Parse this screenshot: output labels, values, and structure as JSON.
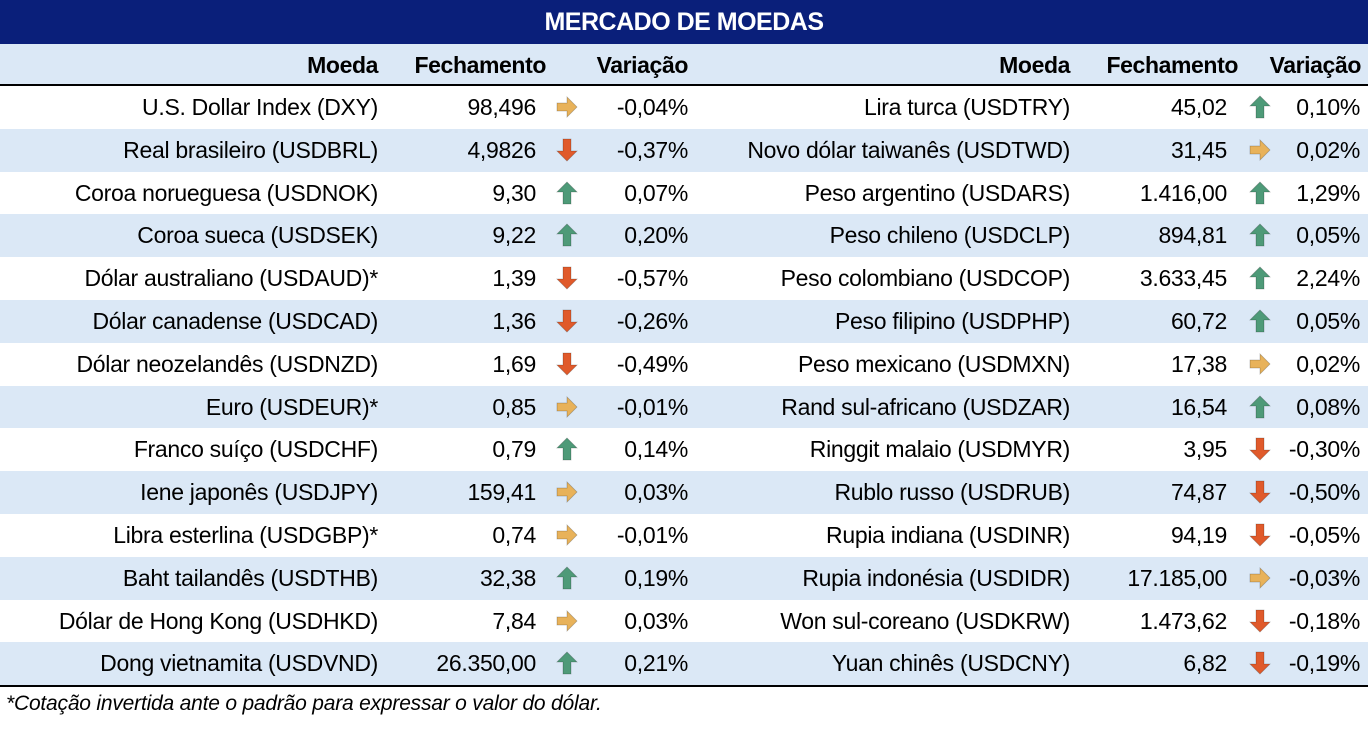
{
  "title": "MERCADO DE MOEDAS",
  "headers": {
    "moeda": "Moeda",
    "fechamento": "Fechamento",
    "variacao": "Variação"
  },
  "colors": {
    "title_bg": "#0a1f7a",
    "band": "#dbe8f6",
    "up": "#4e9a78",
    "down": "#e05a2b",
    "flat": "#e8b25a"
  },
  "left": [
    {
      "name": "U.S. Dollar Index (DXY)",
      "close": "98,496",
      "trend": "flat",
      "change": "-0,04%"
    },
    {
      "name": "Real brasileiro (USDBRL)",
      "close": "4,9826",
      "trend": "down",
      "change": "-0,37%"
    },
    {
      "name": "Coroa norueguesa (USDNOK)",
      "close": "9,30",
      "trend": "up",
      "change": "0,07%"
    },
    {
      "name": "Coroa sueca (USDSEK)",
      "close": "9,22",
      "trend": "up",
      "change": "0,20%"
    },
    {
      "name": "Dólar australiano (USDAUD)*",
      "close": "1,39",
      "trend": "down",
      "change": "-0,57%"
    },
    {
      "name": "Dólar canadense (USDCAD)",
      "close": "1,36",
      "trend": "down",
      "change": "-0,26%"
    },
    {
      "name": "Dólar neozelandês (USDNZD)",
      "close": "1,69",
      "trend": "down",
      "change": "-0,49%"
    },
    {
      "name": "Euro (USDEUR)*",
      "close": "0,85",
      "trend": "flat",
      "change": "-0,01%"
    },
    {
      "name": "Franco suíço (USDCHF)",
      "close": "0,79",
      "trend": "up",
      "change": "0,14%"
    },
    {
      "name": "Iene japonês (USDJPY)",
      "close": "159,41",
      "trend": "flat",
      "change": "0,03%"
    },
    {
      "name": "Libra esterlina (USDGBP)*",
      "close": "0,74",
      "trend": "flat",
      "change": "-0,01%"
    },
    {
      "name": "Baht tailandês (USDTHB)",
      "close": "32,38",
      "trend": "up",
      "change": "0,19%"
    },
    {
      "name": "Dólar de Hong Kong (USDHKD)",
      "close": "7,84",
      "trend": "flat",
      "change": "0,03%"
    },
    {
      "name": "Dong vietnamita (USDVND)",
      "close": "26.350,00",
      "trend": "up",
      "change": "0,21%"
    }
  ],
  "right": [
    {
      "name": "Lira turca (USDTRY)",
      "close": "45,02",
      "trend": "up",
      "change": "0,10%"
    },
    {
      "name": "Novo dólar taiwanês (USDTWD)",
      "close": "31,45",
      "trend": "flat",
      "change": "0,02%"
    },
    {
      "name": "Peso argentino (USDARS)",
      "close": "1.416,00",
      "trend": "up",
      "change": "1,29%"
    },
    {
      "name": "Peso chileno (USDCLP)",
      "close": "894,81",
      "trend": "up",
      "change": "0,05%"
    },
    {
      "name": "Peso colombiano (USDCOP)",
      "close": "3.633,45",
      "trend": "up",
      "change": "2,24%"
    },
    {
      "name": "Peso filipino (USDPHP)",
      "close": "60,72",
      "trend": "up",
      "change": "0,05%"
    },
    {
      "name": "Peso mexicano (USDMXN)",
      "close": "17,38",
      "trend": "flat",
      "change": "0,02%"
    },
    {
      "name": "Rand sul-africano (USDZAR)",
      "close": "16,54",
      "trend": "up",
      "change": "0,08%"
    },
    {
      "name": "Ringgit malaio (USDMYR)",
      "close": "3,95",
      "trend": "down",
      "change": "-0,30%"
    },
    {
      "name": "Rublo russo (USDRUB)",
      "close": "74,87",
      "trend": "down",
      "change": "-0,50%"
    },
    {
      "name": "Rupia indiana (USDINR)",
      "close": "94,19",
      "trend": "down",
      "change": "-0,05%"
    },
    {
      "name": "Rupia indonésia (USDIDR)",
      "close": "17.185,00",
      "trend": "flat",
      "change": "-0,03%"
    },
    {
      "name": "Won sul-coreano (USDKRW)",
      "close": "1.473,62",
      "trend": "down",
      "change": "-0,18%"
    },
    {
      "name": "Yuan chinês (USDCNY)",
      "close": "6,82",
      "trend": "down",
      "change": "-0,19%"
    }
  ],
  "footnote": "*Cotação invertida ante o padrão para expressar o valor do dólar."
}
